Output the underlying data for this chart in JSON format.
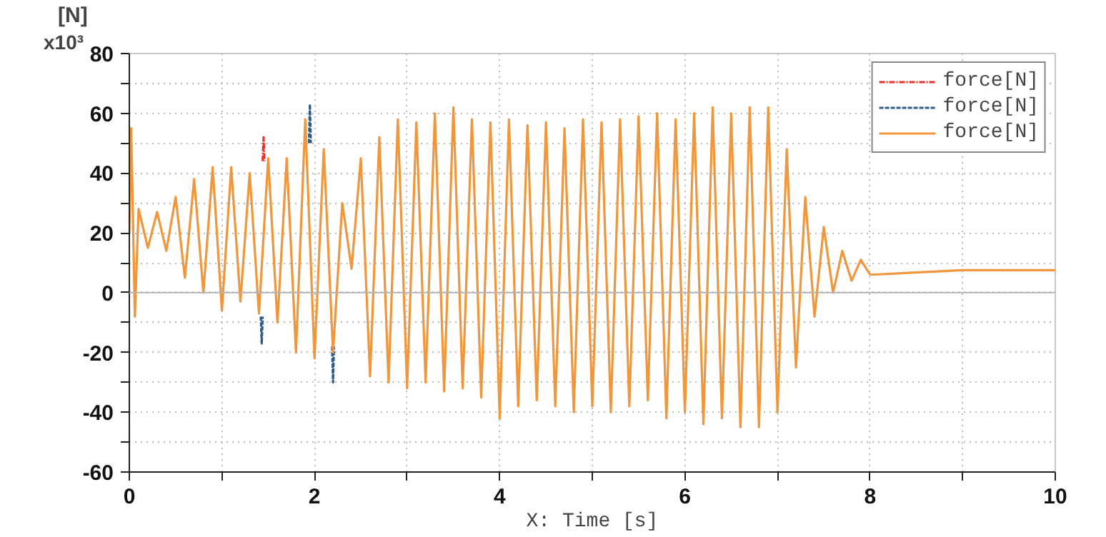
{
  "chart_data": {
    "type": "line",
    "xlabel": "X: Time [s]",
    "ylabel": "[N]",
    "annotations": [
      "x10³"
    ],
    "xlim": [
      0,
      10
    ],
    "ylim": [
      -60,
      80
    ],
    "xticks": [
      0,
      {
        "value": 1,
        "label": null
      },
      2,
      {
        "value": 3,
        "label": null
      },
      4,
      {
        "value": 5,
        "label": null
      },
      6,
      {
        "value": 7,
        "label": null
      },
      8,
      {
        "value": 9,
        "label": null
      },
      10
    ],
    "yticks": [
      -60,
      {
        "value": -50,
        "label": null
      },
      -40,
      {
        "value": -30,
        "label": null
      },
      -20,
      {
        "value": -10,
        "label": null
      },
      0,
      {
        "value": 10,
        "label": null
      },
      20,
      {
        "value": 30,
        "label": null
      },
      40,
      {
        "value": 50,
        "label": null
      },
      60,
      {
        "value": 70,
        "label": null
      },
      80
    ],
    "grid": true,
    "legend": "top right",
    "ref_lines": [
      {
        "axis": "y",
        "value": 0,
        "color": "#b4b4b4",
        "line_style": "solid"
      }
    ],
    "series": [
      {
        "name": "force[N]",
        "color": "#e8322b",
        "line_style": "dashdot",
        "x": [
          1.44,
          1.45,
          1.46
        ],
        "values": [
          44,
          52,
          44
        ]
      },
      {
        "name": "force[N]",
        "color": "#2e5a88",
        "line_style": "dashed",
        "x": [
          1.42,
          1.43,
          1.44,
          1.6,
          1.94,
          1.95,
          1.96,
          2.1,
          2.19,
          2.2,
          2.21
        ],
        "values": [
          -8,
          -17,
          -8,
          null,
          50,
          63,
          50,
          null,
          -18,
          -30,
          -18
        ]
      },
      {
        "name": "force[N]",
        "color": "#f0963c",
        "line_style": "solid",
        "x": [
          0,
          0.02,
          0.06,
          0.1,
          0.2,
          0.3,
          0.4,
          0.5,
          0.6,
          0.7,
          0.8,
          0.9,
          1.0,
          1.1,
          1.2,
          1.3,
          1.4,
          1.5,
          1.6,
          1.7,
          1.8,
          1.9,
          2.0,
          2.1,
          2.2,
          2.3,
          2.4,
          2.5,
          2.6,
          2.7,
          2.8,
          2.9,
          3.0,
          3.1,
          3.2,
          3.3,
          3.4,
          3.5,
          3.6,
          3.7,
          3.8,
          3.9,
          4.0,
          4.1,
          4.2,
          4.3,
          4.4,
          4.5,
          4.6,
          4.7,
          4.8,
          4.9,
          5.0,
          5.1,
          5.2,
          5.3,
          5.4,
          5.5,
          5.6,
          5.7,
          5.8,
          5.9,
          6.0,
          6.1,
          6.2,
          6.3,
          6.4,
          6.5,
          6.6,
          6.7,
          6.8,
          6.9,
          7.0,
          7.1,
          7.2,
          7.3,
          7.4,
          7.5,
          7.6,
          7.7,
          7.8,
          7.9,
          8.0,
          9,
          10
        ],
        "values": [
          20,
          55,
          -8,
          28,
          15,
          27,
          14,
          32,
          5,
          38,
          0,
          42,
          -6,
          42,
          -3,
          40,
          -7,
          45,
          -10,
          45,
          -20,
          58,
          -22,
          48,
          -20,
          30,
          8,
          45,
          -28,
          52,
          -30,
          58,
          -32,
          57,
          -30,
          60,
          -33,
          62,
          -32,
          58,
          -35,
          57,
          -42,
          58,
          -38,
          56,
          -36,
          57,
          -38,
          55,
          -40,
          58,
          -38,
          57,
          -40,
          58,
          -38,
          59,
          -36,
          60,
          -42,
          58,
          -40,
          60,
          -44,
          62,
          -42,
          60,
          -45,
          62,
          -45,
          62,
          -40,
          48,
          -25,
          32,
          -8,
          22,
          0,
          14,
          4,
          11,
          6,
          7.5,
          7.5
        ]
      }
    ]
  }
}
